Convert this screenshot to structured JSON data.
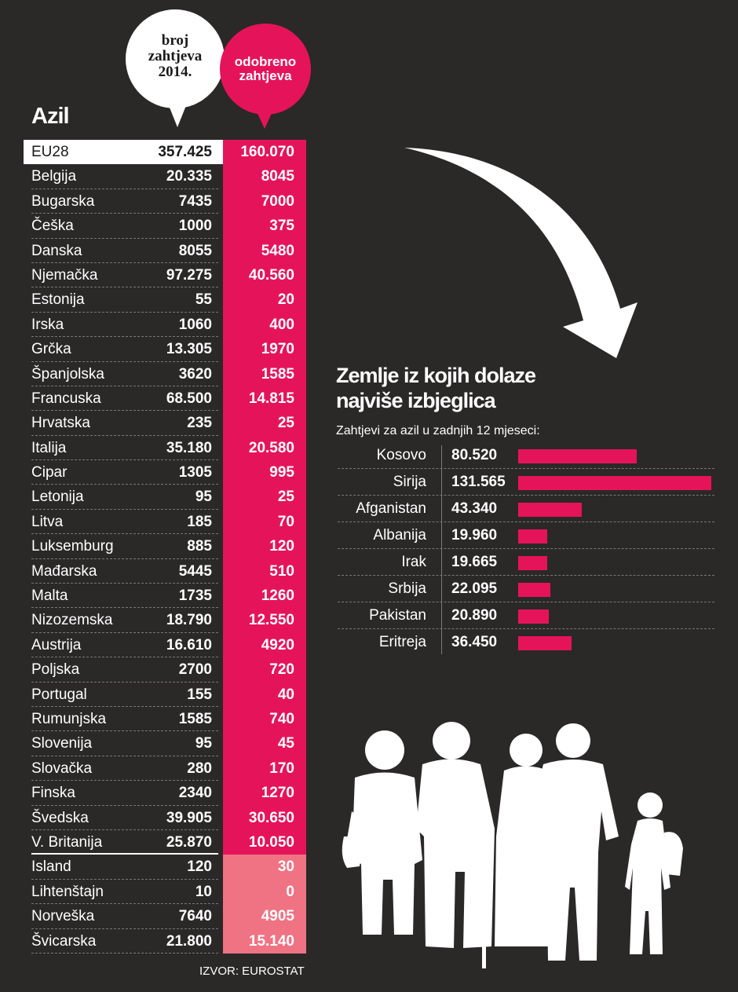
{
  "header": {
    "requests_label": "broj\nzahtjeva\n2014.",
    "approved_label": "odobreno\nzahtjeva"
  },
  "title": "Azil",
  "colors": {
    "background": "#2b2828",
    "accent": "#e5145a",
    "accent_light": "#ef7383",
    "white": "#ffffff"
  },
  "table": {
    "rows": [
      {
        "country": "EU28",
        "requests": "357.425",
        "approved": "160.070"
      },
      {
        "country": "Belgija",
        "requests": "20.335",
        "approved": "8045"
      },
      {
        "country": "Bugarska",
        "requests": "7435",
        "approved": "7000"
      },
      {
        "country": "Češka",
        "requests": "1000",
        "approved": "375"
      },
      {
        "country": "Danska",
        "requests": "8055",
        "approved": "5480"
      },
      {
        "country": "Njemačka",
        "requests": "97.275",
        "approved": "40.560"
      },
      {
        "country": "Estonija",
        "requests": "55",
        "approved": "20"
      },
      {
        "country": "Irska",
        "requests": "1060",
        "approved": "400"
      },
      {
        "country": "Grčka",
        "requests": "13.305",
        "approved": "1970"
      },
      {
        "country": "Španjolska",
        "requests": "3620",
        "approved": "1585"
      },
      {
        "country": "Francuska",
        "requests": "68.500",
        "approved": "14.815"
      },
      {
        "country": "Hrvatska",
        "requests": "235",
        "approved": "25"
      },
      {
        "country": "Italija",
        "requests": "35.180",
        "approved": "20.580"
      },
      {
        "country": "Cipar",
        "requests": "1305",
        "approved": "995"
      },
      {
        "country": "Letonija",
        "requests": "95",
        "approved": "25"
      },
      {
        "country": "Litva",
        "requests": "185",
        "approved": "70"
      },
      {
        "country": "Luksemburg",
        "requests": "885",
        "approved": "120"
      },
      {
        "country": "Mađarska",
        "requests": "5445",
        "approved": "510"
      },
      {
        "country": "Malta",
        "requests": "1735",
        "approved": "1260"
      },
      {
        "country": "Nizozemska",
        "requests": "18.790",
        "approved": "12.550"
      },
      {
        "country": "Austrija",
        "requests": "16.610",
        "approved": "4920"
      },
      {
        "country": "Poljska",
        "requests": "2700",
        "approved": "720"
      },
      {
        "country": "Portugal",
        "requests": "155",
        "approved": "40"
      },
      {
        "country": "Rumunjska",
        "requests": "1585",
        "approved": "740"
      },
      {
        "country": "Slovenija",
        "requests": "95",
        "approved": "45"
      },
      {
        "country": "Slovačka",
        "requests": "280",
        "approved": "170"
      },
      {
        "country": "Finska",
        "requests": "2340",
        "approved": "1270"
      },
      {
        "country": "Švedska",
        "requests": "39.905",
        "approved": "30.650"
      },
      {
        "country": "V. Britanija",
        "requests": "25.870",
        "approved": "10.050"
      },
      {
        "country": "Island",
        "requests": "120",
        "approved": "30"
      },
      {
        "country": "Lihtenštajn",
        "requests": "10",
        "approved": "0"
      },
      {
        "country": "Norveška",
        "requests": "7640",
        "approved": "4905"
      },
      {
        "country": "Švicarska",
        "requests": "21.800",
        "approved": "15.140"
      }
    ]
  },
  "source": "IZVOR: EUROSTAT",
  "chart_data": {
    "type": "bar",
    "title": "Zemlje iz kojih dolaze\nnajviše izbjeglica",
    "subtitle": "Zahtjevi za azil u zadnjih 12 mjeseci:",
    "categories": [
      "Kosovo",
      "Sirija",
      "Afganistan",
      "Albanija",
      "Irak",
      "Srbija",
      "Pakistan",
      "Eritreja"
    ],
    "values": [
      80520,
      131565,
      43340,
      19960,
      19665,
      22095,
      20890,
      36450
    ],
    "value_labels": [
      "80.520",
      "131.565",
      "43.340",
      "19.960",
      "19.665",
      "22.095",
      "20.890",
      "36.450"
    ],
    "orientation": "horizontal",
    "xlim": [
      0,
      131565
    ],
    "grid": false
  },
  "illustration": "family-silhouette-icon"
}
